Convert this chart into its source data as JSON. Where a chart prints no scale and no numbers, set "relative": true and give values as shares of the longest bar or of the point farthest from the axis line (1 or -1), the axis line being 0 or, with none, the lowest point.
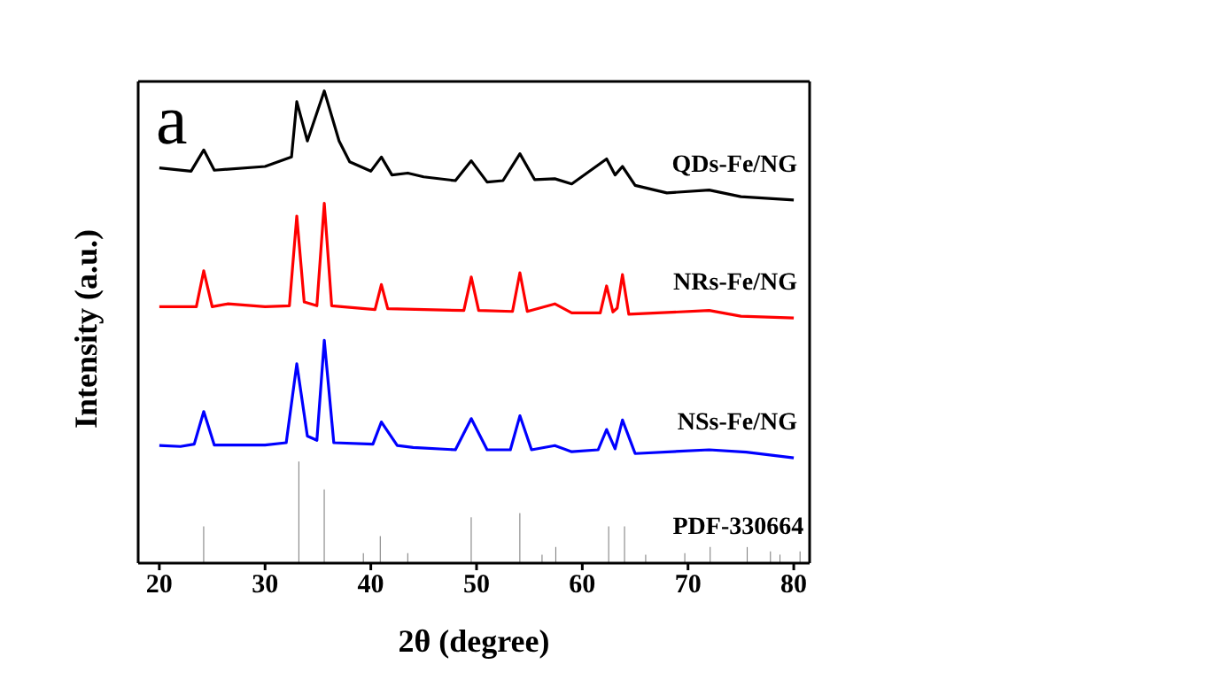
{
  "chart_data": {
    "type": "line",
    "relative": true,
    "xlabel": "2θ (degree)",
    "ylabel": "Intensity (a.u.)",
    "annotations": [
      "a"
    ],
    "xlim": [
      18,
      81.5
    ],
    "xticks": [
      20,
      30,
      40,
      50,
      60,
      70,
      80
    ],
    "legend": false,
    "marker": "none",
    "series": [
      {
        "name": "QDs-Fe/NG",
        "color": "#000000",
        "x": [
          20,
          23,
          24.2,
          25.2,
          30,
          32.5,
          33,
          34,
          35.6,
          37,
          38,
          40,
          41,
          42,
          43.5,
          45,
          48,
          49.5,
          51,
          52.5,
          54.1,
          55.5,
          57.4,
          59,
          62.3,
          63.1,
          63.8,
          65,
          68,
          72,
          75,
          80
        ],
        "values": [
          0.837,
          0.83,
          0.875,
          0.832,
          0.84,
          0.86,
          0.977,
          0.894,
          1.0,
          0.894,
          0.85,
          0.83,
          0.86,
          0.822,
          0.826,
          0.818,
          0.81,
          0.852,
          0.807,
          0.81,
          0.867,
          0.812,
          0.814,
          0.803,
          0.856,
          0.822,
          0.84,
          0.8,
          0.784,
          0.79,
          0.776,
          0.769
        ]
      },
      {
        "name": "NRs-Fe/NG",
        "color": "#ff0000",
        "x": [
          20,
          23.5,
          24.2,
          25,
          26.5,
          30,
          32.3,
          33,
          33.7,
          34.9,
          35.6,
          36.3,
          40.4,
          41,
          41.6,
          48.8,
          49.5,
          50.2,
          53.4,
          54.1,
          54.8,
          57.4,
          59,
          61.7,
          62.3,
          62.9,
          63.3,
          63.8,
          64.4,
          72,
          75,
          80
        ],
        "values": [
          0.543,
          0.543,
          0.619,
          0.543,
          0.549,
          0.543,
          0.545,
          0.735,
          0.553,
          0.545,
          0.762,
          0.545,
          0.537,
          0.59,
          0.539,
          0.535,
          0.606,
          0.535,
          0.533,
          0.615,
          0.533,
          0.549,
          0.53,
          0.53,
          0.587,
          0.532,
          0.54,
          0.611,
          0.527,
          0.535,
          0.523,
          0.519
        ]
      },
      {
        "name": "NSs-Fe/NG",
        "color": "#0000ff",
        "x": [
          20,
          22,
          23.3,
          24.2,
          25.2,
          30,
          32,
          33,
          34,
          34.9,
          35.6,
          36.5,
          40.2,
          41,
          42.5,
          44,
          48,
          49.5,
          51,
          53.2,
          54.1,
          55.2,
          57.4,
          59,
          61.5,
          62.3,
          63.1,
          63.8,
          65,
          72,
          75.5,
          80
        ],
        "values": [
          0.249,
          0.247,
          0.252,
          0.321,
          0.25,
          0.25,
          0.255,
          0.422,
          0.269,
          0.26,
          0.472,
          0.255,
          0.252,
          0.299,
          0.249,
          0.245,
          0.24,
          0.306,
          0.24,
          0.24,
          0.312,
          0.24,
          0.249,
          0.236,
          0.24,
          0.283,
          0.242,
          0.303,
          0.232,
          0.24,
          0.235,
          0.223
        ]
      },
      {
        "name": "PDF-330664",
        "type": "bar",
        "color": "#808080",
        "x": [
          24.2,
          33.2,
          35.6,
          39.3,
          40.9,
          43.5,
          49.5,
          54.1,
          56.2,
          57.5,
          62.5,
          64.0,
          66.0,
          69.7,
          72.1,
          75.6,
          77.8,
          78.7,
          80.6
        ],
        "values": [
          0.078,
          0.215,
          0.156,
          0.021,
          0.057,
          0.021,
          0.097,
          0.106,
          0.018,
          0.034,
          0.078,
          0.078,
          0.018,
          0.021,
          0.034,
          0.034,
          0.025,
          0.018,
          0.025
        ]
      }
    ]
  }
}
